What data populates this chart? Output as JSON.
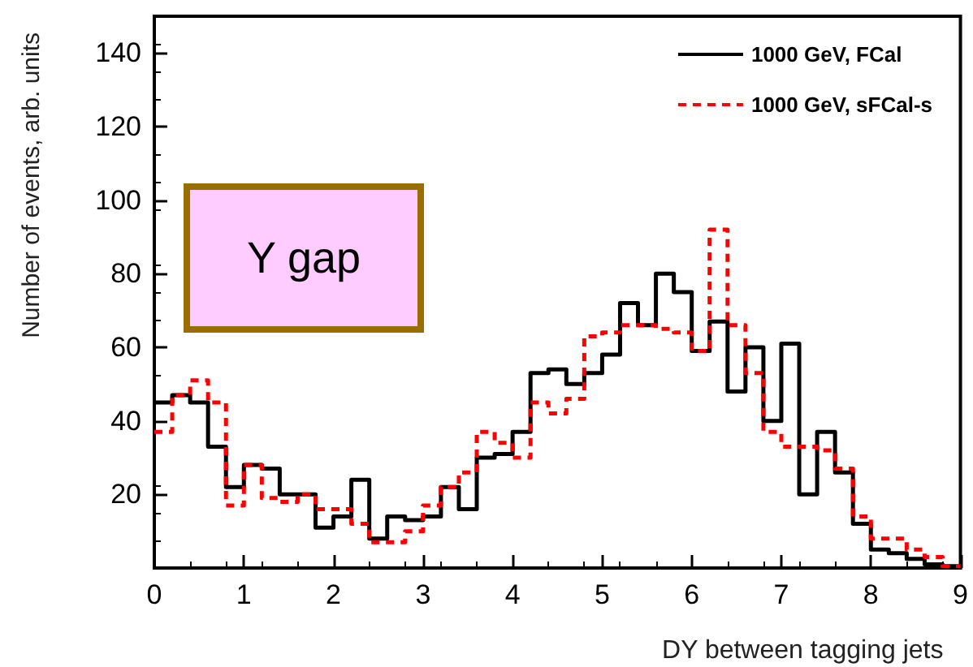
{
  "chart_data": {
    "type": "histogram",
    "xlabel": "DY between tagging jets",
    "ylabel": "Number of events, arb. units",
    "annotations": [
      "Y gap"
    ],
    "bins": [
      0,
      0.2,
      0.4,
      0.6,
      0.8,
      1.0,
      1.2,
      1.4,
      1.6,
      1.8,
      2.0,
      2.2,
      2.4,
      2.6,
      2.8,
      3.0,
      3.2,
      3.4,
      3.6,
      3.8,
      4.0,
      4.2,
      4.4,
      4.6,
      4.8,
      5.0,
      5.2,
      5.4,
      5.6,
      5.8,
      6.0,
      6.2,
      6.4,
      6.6,
      6.8,
      7.0,
      7.2,
      7.4,
      7.6,
      7.8,
      8.0,
      8.2,
      8.4,
      8.6,
      8.8,
      9.0
    ],
    "series": [
      {
        "name": "1000 GeV, FCal",
        "color": "#000000",
        "line_style": "solid",
        "values": [
          45,
          47,
          45,
          33,
          22,
          28,
          27,
          20,
          20,
          11,
          14,
          24,
          8,
          14,
          13,
          14,
          22,
          16,
          30,
          31,
          37,
          53,
          54,
          50,
          53,
          58,
          72,
          66,
          80,
          75,
          59,
          67,
          48,
          60,
          40,
          61,
          20,
          37,
          26,
          12,
          5,
          4,
          2.5,
          1,
          0.5
        ]
      },
      {
        "name": "1000 GeV, sFCal-s",
        "color": "#ff0000",
        "line_style": "dashed",
        "values": [
          37,
          47,
          51,
          45,
          17,
          28,
          19,
          18,
          20,
          16,
          16,
          12,
          7,
          7,
          10,
          17,
          22,
          26,
          37,
          34,
          30,
          45,
          42,
          46,
          63,
          64,
          66,
          66,
          65,
          64,
          59,
          92,
          66,
          53,
          37,
          33,
          33,
          32,
          27,
          14,
          8,
          8,
          5,
          3,
          0.5
        ]
      }
    ],
    "xlim": [
      0,
      9
    ],
    "xticks": [
      0,
      1,
      2,
      3,
      4,
      5,
      6,
      7,
      8,
      9
    ],
    "ylim": [
      0,
      150
    ],
    "yticks": [
      20,
      40,
      60,
      80,
      100,
      120,
      140
    ],
    "grid": false,
    "legend": "top right"
  }
}
